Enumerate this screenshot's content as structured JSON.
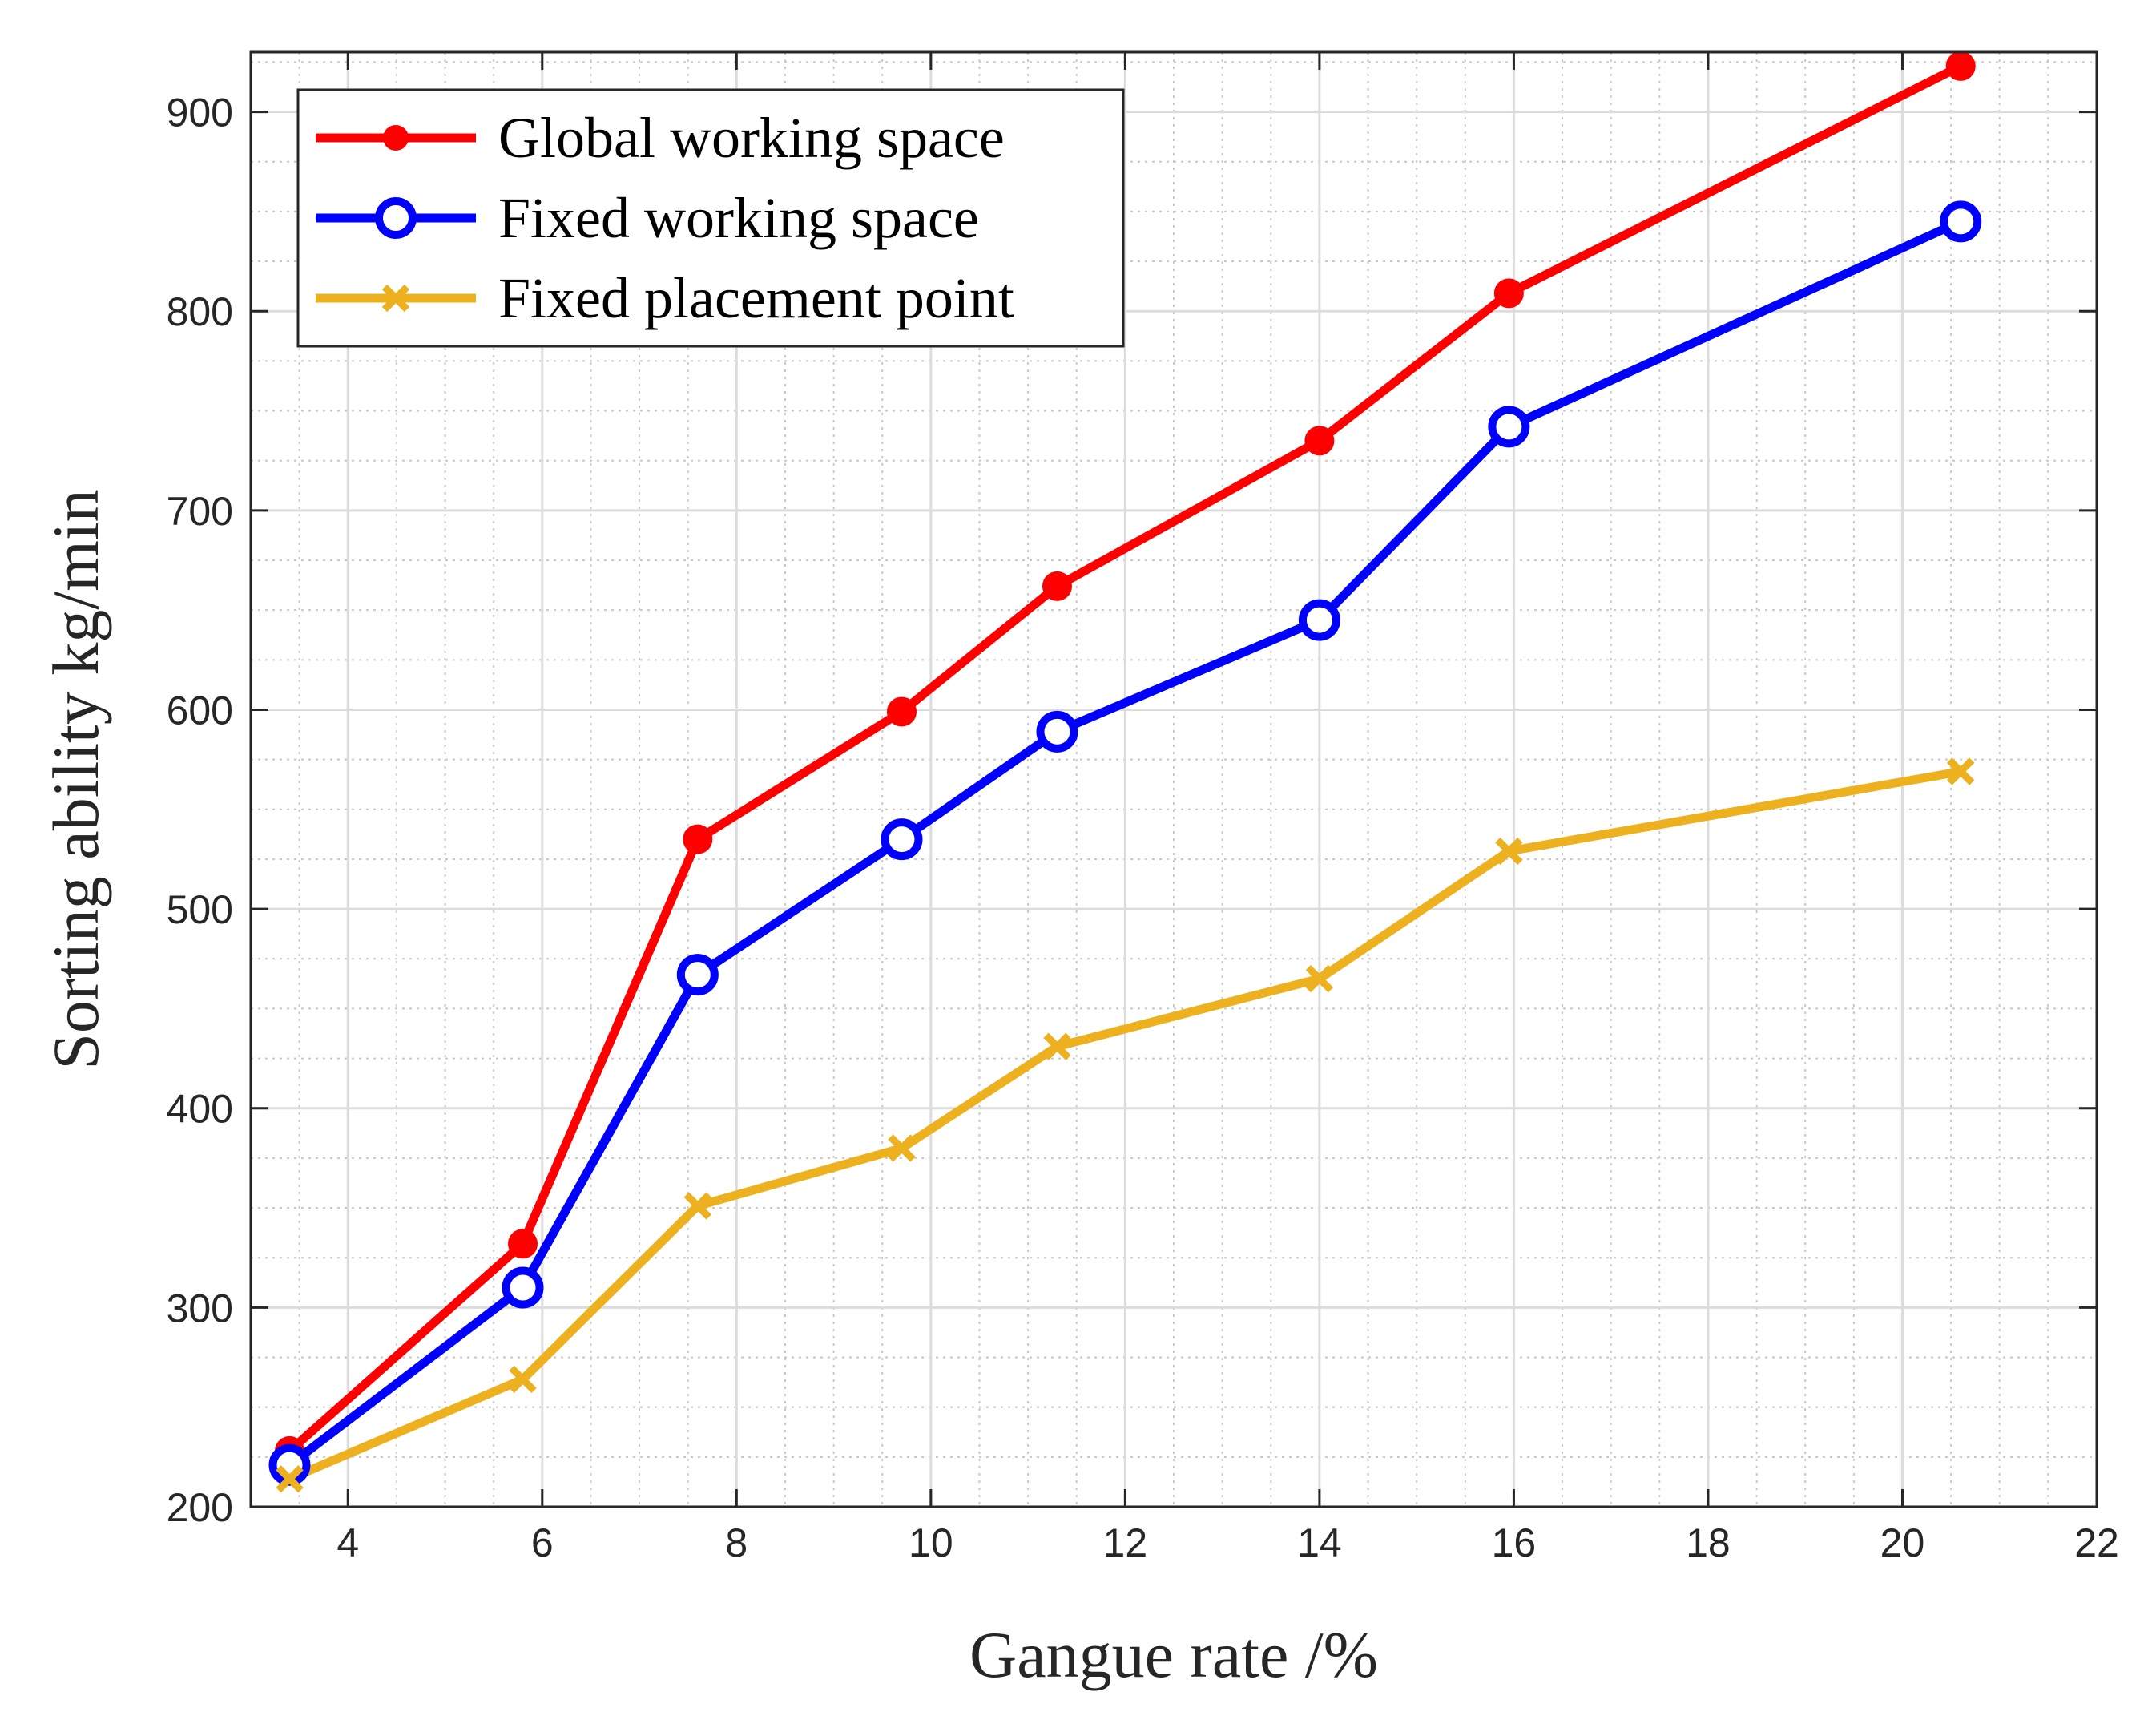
{
  "chart_data": {
    "type": "line",
    "xlabel": "Gangue rate /%",
    "ylabel": "Sorting ability kg/min",
    "xlim": [
      3,
      22
    ],
    "ylim": [
      200,
      930
    ],
    "xticks": [
      4,
      6,
      8,
      10,
      12,
      14,
      16,
      18,
      20,
      22
    ],
    "yticks": [
      200,
      300,
      400,
      500,
      600,
      700,
      800,
      900
    ],
    "grid": true,
    "minor_grid": true,
    "legend_position": "top-left",
    "series": [
      {
        "name": "Global working space",
        "color": "#ff0000",
        "marker": "filled-circle",
        "x": [
          3.4,
          5.8,
          7.6,
          9.7,
          11.3,
          14.0,
          15.95,
          20.6
        ],
        "y": [
          228,
          332,
          535,
          599,
          662,
          735,
          809,
          923
        ]
      },
      {
        "name": "Fixed working space",
        "color": "#0000ff",
        "marker": "open-circle",
        "x": [
          3.4,
          5.8,
          7.6,
          9.7,
          11.3,
          14.0,
          15.95,
          20.6
        ],
        "y": [
          221,
          310,
          467,
          535,
          589,
          645,
          742,
          845
        ]
      },
      {
        "name": "Fixed placement point",
        "color": "#edb120",
        "marker": "x",
        "x": [
          3.4,
          5.8,
          7.6,
          9.7,
          11.3,
          14.0,
          15.95,
          20.6
        ],
        "y": [
          214,
          264,
          351,
          380,
          431,
          465,
          529,
          569
        ]
      }
    ]
  }
}
